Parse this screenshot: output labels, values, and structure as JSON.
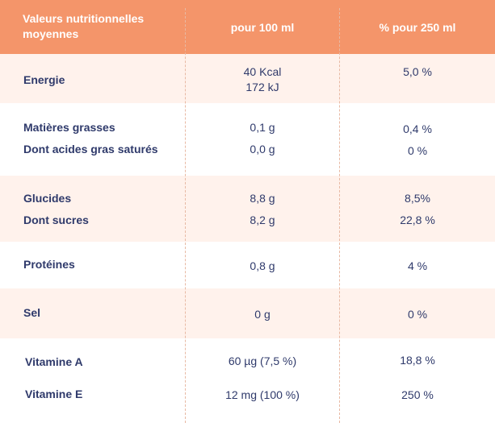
{
  "header": {
    "col1": "Valeurs nutritionnelles moyennes",
    "col2": "pour 100 ml",
    "col3": "% pour 250 ml"
  },
  "rows": [
    {
      "label": "Energie",
      "per100_line1": "40 Kcal",
      "per100_line2": "172 kJ",
      "per250": "5,0 %"
    },
    {
      "label": "Matières grasses",
      "per100": "0,1 g",
      "per250": "0,4 %"
    },
    {
      "label": "Dont acides gras saturés",
      "per100": "0,0 g",
      "per250": "0 %"
    },
    {
      "label": "Glucides",
      "per100": "8,8 g",
      "per250": "8,5%"
    },
    {
      "label": "Dont sucres",
      "per100": "8,2 g",
      "per250": "22,8 %"
    },
    {
      "label": "Protéines",
      "per100": "0,8 g",
      "per250": "4 %"
    },
    {
      "label": "Sel",
      "per100": "0 g",
      "per250": "0 %"
    },
    {
      "label": "Vitamine A",
      "per100": "60 µg (7,5  %)",
      "per250": "18,8 %"
    },
    {
      "label": "Vitamine E",
      "per100": "12 mg (100 %)",
      "per250": "250 %"
    }
  ],
  "colors": {
    "header_bg": "#f4956a",
    "band_tint": "#fff2ec",
    "text": "#2f3a6b",
    "divider": "#e8b9a3"
  }
}
